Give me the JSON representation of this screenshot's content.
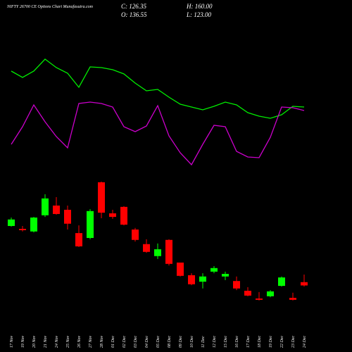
{
  "chart_data": {
    "type": "candlestick",
    "title": "NIFTY 26700  CE Options  Chart Munafasutra.com",
    "ohlc_labels": {
      "close": "C: 126.35",
      "high": "H: 160.00",
      "open": "O: 136.55",
      "low": "L: 123.00"
    },
    "categories": [
      "17 Nov",
      "19 Nov",
      "20 Nov",
      "21 Nov",
      "24 Nov",
      "25 Nov",
      "26 Nov",
      "27 Nov",
      "28 Nov",
      "01 Dec",
      "02 Dec",
      "03 Dec",
      "04 Dec",
      "05 Dec",
      "08 Dec",
      "09 Dec",
      "10 Dec",
      "11 Dec",
      "12 Dec",
      "15 Dec",
      "16 Dec",
      "17 Dec",
      "18 Dec",
      "19 Dec",
      "22 Dec",
      "23 Dec",
      "24 Dec"
    ],
    "open": [
      310,
      301,
      293,
      343,
      373,
      360,
      288,
      273,
      445,
      349,
      369,
      299,
      254,
      217,
      267,
      197,
      158,
      138,
      169,
      154,
      140,
      110,
      86,
      93,
      125,
      88,
      136.55
    ],
    "high": [
      336,
      310,
      338,
      408,
      399,
      373,
      312,
      362,
      447,
      360,
      371,
      304,
      269,
      256,
      269,
      197,
      164,
      164,
      186,
      169,
      154,
      121,
      106,
      112,
      154,
      104,
      160
    ],
    "low": [
      308,
      293,
      290,
      338,
      345,
      299,
      245,
      269,
      334,
      332,
      312,
      262,
      227,
      208,
      188,
      154,
      127,
      117,
      164,
      143,
      112,
      93,
      80,
      90,
      123,
      80,
      123
    ],
    "close": [
      330,
      297,
      336,
      395,
      347,
      317,
      247,
      356,
      351,
      338,
      314,
      267,
      230,
      238,
      193,
      156,
      130,
      154,
      180,
      162,
      117,
      95,
      82,
      108,
      151,
      82,
      126.35
    ],
    "up_color": "#00ff00",
    "down_color": "#ff0000",
    "ylim": [
      51.3,
      464.3
    ],
    "series": [
      {
        "color": "#00ee00",
        "axis": "y2",
        "values": [
          149,
          140,
          149,
          166,
          154,
          146,
          126,
          155,
          154,
          151,
          145,
          132,
          121,
          123,
          112,
          102,
          98,
          94,
          99,
          105,
          101,
          90,
          85,
          82,
          87,
          99,
          98
        ]
      },
      {
        "color": "#cc00cc",
        "axis": "y2",
        "values": [
          45,
          70,
          101,
          77,
          56,
          40,
          103,
          105,
          103,
          98,
          70,
          63,
          71,
          100,
          57,
          33,
          16,
          45,
          72,
          70,
          35,
          27,
          26,
          55,
          98,
          97,
          93
        ]
      }
    ],
    "y2lim": [
      0,
      200
    ]
  }
}
